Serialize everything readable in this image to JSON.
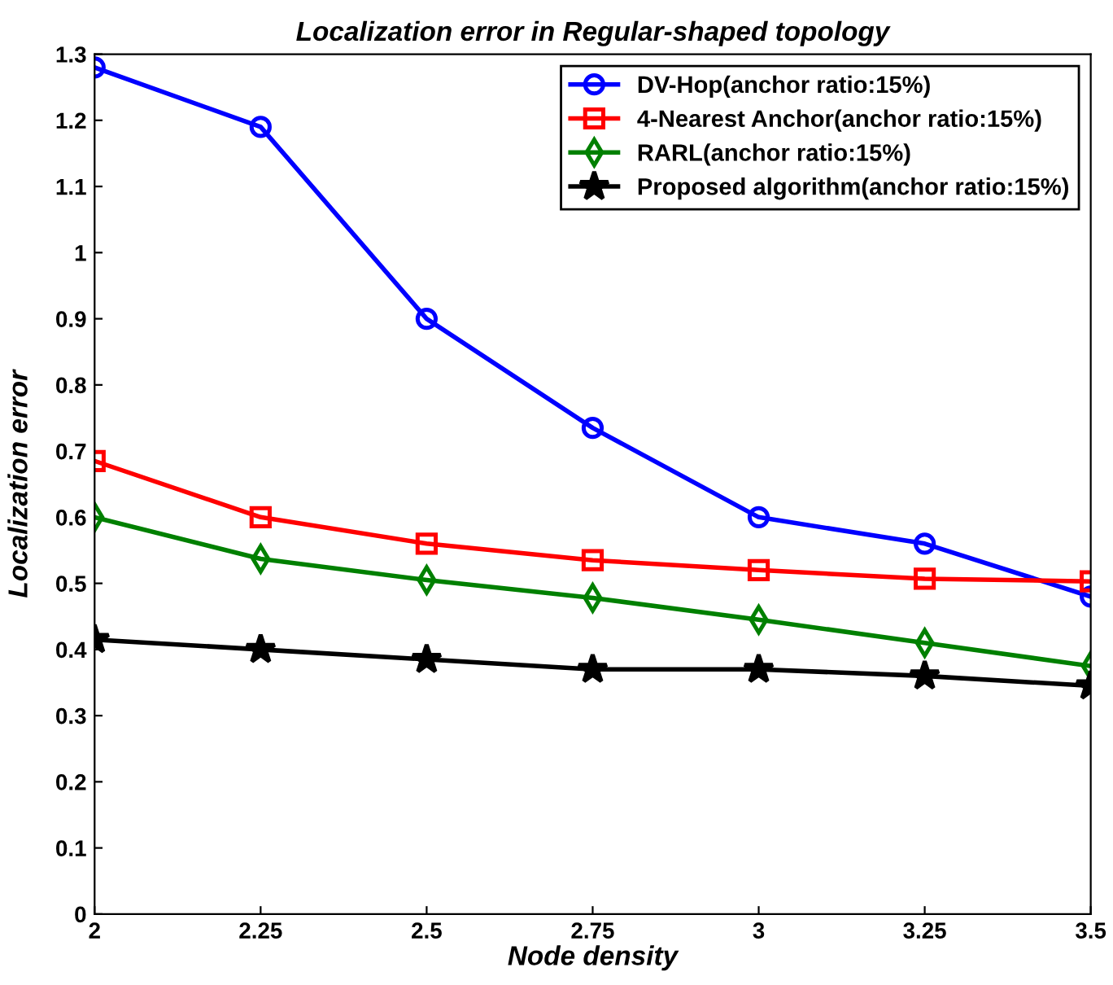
{
  "chart_data": {
    "type": "line",
    "title": "Localization error in Regular-shaped topology",
    "xlabel": "Node density",
    "ylabel": "Localization error",
    "x": [
      2,
      2.25,
      2.5,
      2.75,
      3,
      3.25,
      3.5
    ],
    "series": [
      {
        "name": "DV-Hop(anchor ratio:15%)",
        "color": "#0000ff",
        "marker": "circle",
        "values": [
          1.28,
          1.19,
          0.9,
          0.735,
          0.6,
          0.56,
          0.48
        ]
      },
      {
        "name": "4-Nearest Anchor(anchor ratio:15%)",
        "color": "#ff0000",
        "marker": "square",
        "values": [
          0.685,
          0.6,
          0.56,
          0.535,
          0.52,
          0.507,
          0.503
        ]
      },
      {
        "name": "RARL(anchor ratio:15%)",
        "color": "#008000",
        "marker": "diamond",
        "values": [
          0.6,
          0.537,
          0.505,
          0.478,
          0.445,
          0.41,
          0.375
        ]
      },
      {
        "name": "Proposed algorithm(anchor ratio:15%)",
        "color": "#000000",
        "marker": "star",
        "values": [
          0.415,
          0.4,
          0.385,
          0.37,
          0.37,
          0.36,
          0.345
        ]
      }
    ],
    "xlim": [
      2,
      3.5
    ],
    "xticks": [
      2,
      2.25,
      2.5,
      2.75,
      3,
      3.25,
      3.5
    ],
    "ylim": [
      0,
      1.3
    ],
    "yticks": [
      0,
      0.1,
      0.2,
      0.3,
      0.4,
      0.5,
      0.6,
      0.7,
      0.8,
      0.9,
      1,
      1.1,
      1.2,
      1.3
    ],
    "grid": false,
    "legend": "top right",
    "line_style": "solid"
  }
}
